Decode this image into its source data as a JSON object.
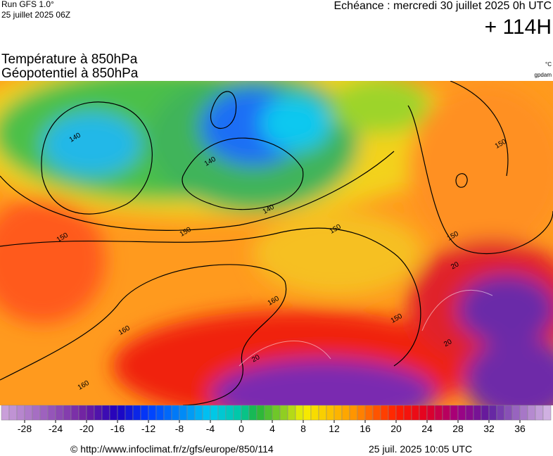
{
  "header": {
    "run": "Run GFS 1.0°",
    "run_date": "25 juillet 2025 06Z",
    "valid": "Echéance : mercredi 30 juillet 2025 0h UTC",
    "lead": "+ 114H",
    "title1": "Température à 850hPa",
    "title2": "Géopotentiel à 850hPa",
    "unit1": "°C",
    "unit2": "gpdam"
  },
  "map": {
    "contour_labels": [
      "140",
      "140",
      "140",
      "150",
      "150",
      "150",
      "150",
      "150",
      "150",
      "160",
      "160",
      "160",
      "20",
      "20",
      "20"
    ]
  },
  "colorbar": {
    "ticks": [
      -28,
      -24,
      -20,
      -16,
      -12,
      -8,
      -4,
      0,
      4,
      8,
      12,
      16,
      20,
      24,
      28,
      32,
      36
    ]
  },
  "footer": {
    "source": "© http://www.infoclimat.fr/z/gfs/europe/850/114",
    "generated": "25 juil. 2025 10:05 UTC"
  }
}
